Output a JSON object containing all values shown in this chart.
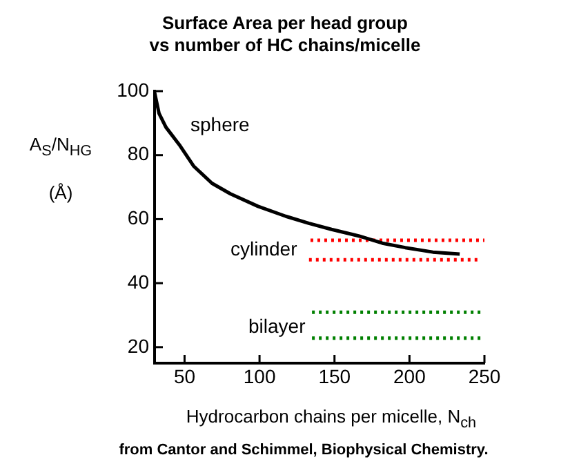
{
  "chart_data": {
    "type": "line",
    "title": "Surface Area per head group\nvs number of HC chains/micelle",
    "xlabel": "Hydrocarbon chains per micelle, N$_{ch}$",
    "ylabel": "A$_{S}$/N$_{HG}$\n(Å)",
    "xlim": [
      30,
      250
    ],
    "xticks": [
      50,
      100,
      150,
      200,
      250
    ],
    "ylim": [
      15,
      100
    ],
    "yticks": [
      20,
      40,
      60,
      80,
      100
    ],
    "grid": false,
    "legend": false,
    "marker": "none",
    "series": [
      {
        "color": "#000000",
        "line_style": "solid",
        "x": [
          30,
          33,
          37.6,
          46.9,
          56,
          68.3,
          80.6,
          99,
          117.5,
          132.8,
          148,
          166.5,
          181.9,
          197.2,
          215.6,
          233.5
        ],
        "values": [
          99.6,
          93,
          88.7,
          83,
          76.6,
          71.2,
          67.9,
          64,
          60.9,
          58.7,
          56.8,
          54.7,
          52.5,
          51.1,
          49.7,
          49.1
        ]
      },
      {
        "color": "#ff0000",
        "line_style": "dotted",
        "x": [
          134,
          250
        ],
        "values": [
          53.4,
          53.4
        ]
      },
      {
        "color": "#ff0000",
        "line_style": "dotted",
        "x": [
          133,
          248
        ],
        "values": [
          47.3,
          47.3
        ]
      },
      {
        "color": "#008000",
        "line_style": "dotted",
        "x": [
          135,
          250
        ],
        "values": [
          30.9,
          30.9
        ]
      },
      {
        "color": "#008000",
        "line_style": "dotted",
        "x": [
          135,
          250
        ],
        "values": [
          22.8,
          22.8
        ]
      }
    ],
    "annotations": [
      "sphere",
      "cylinder",
      "bilayer",
      "from Cantor and Schimmel, Biophysical Chemistry."
    ]
  }
}
